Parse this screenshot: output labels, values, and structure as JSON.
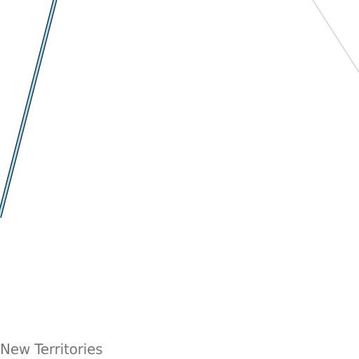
{
  "map": {
    "region_label": "New Territories",
    "colors": {
      "background": "#ffffff",
      "road_fill": "#a9e3f8",
      "road_casing": "#263238",
      "boundary_line": "#dcdcdc",
      "label_text": "#757575"
    }
  }
}
